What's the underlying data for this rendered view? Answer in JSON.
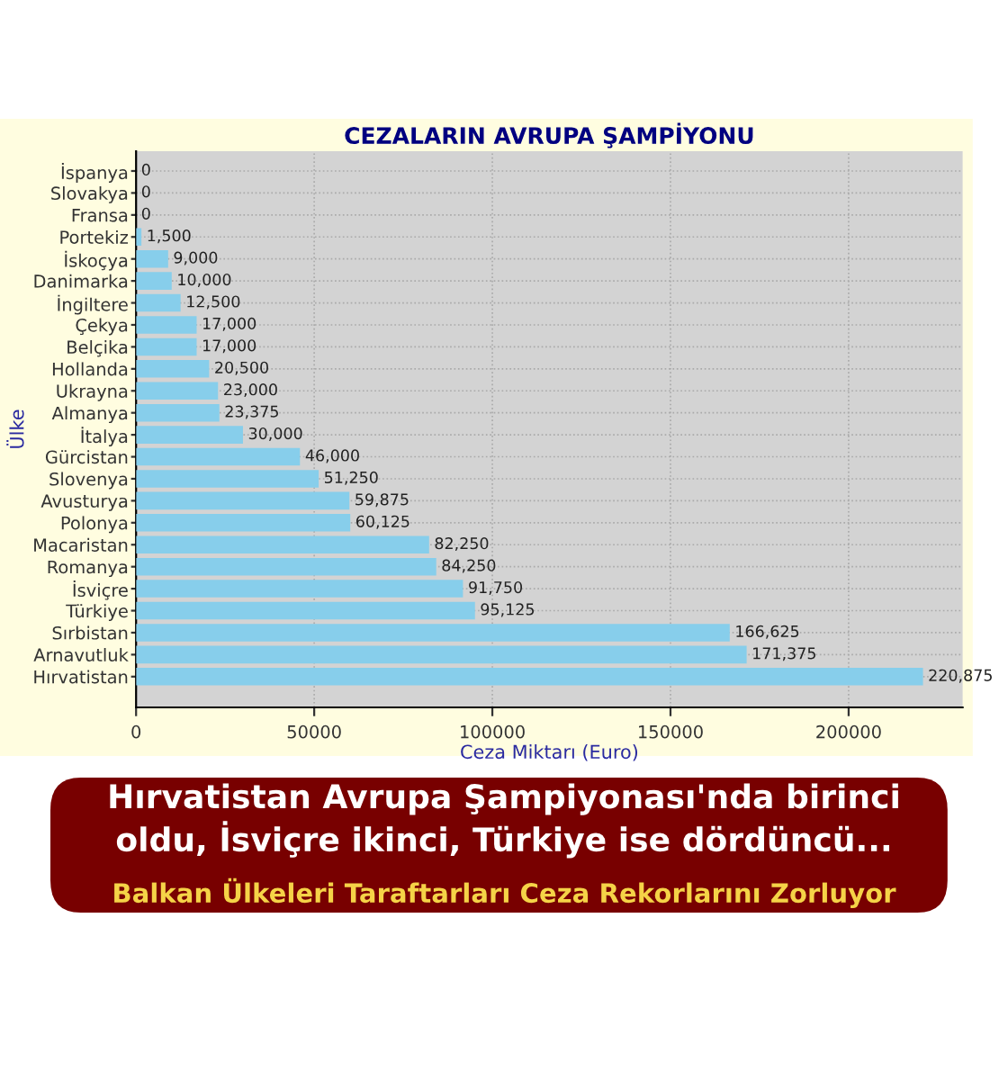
{
  "chart_data": {
    "type": "bar",
    "orientation": "horizontal",
    "title": "CEZALARIN AVRUPA ŞAMPİYONU",
    "xlabel": "Ceza Miktarı (Euro)",
    "ylabel": "Ülke",
    "categories": [
      "İspanya",
      "Slovakya",
      "Fransa",
      "Portekiz",
      "İskoçya",
      "Danimarka",
      "İngiltere",
      "Çekya",
      "Belçika",
      "Hollanda",
      "Ukrayna",
      "Almanya",
      "İtalya",
      "Gürcistan",
      "Slovenya",
      "Avusturya",
      "Polonya",
      "Macaristan",
      "Romanya",
      "İsviçre",
      "Türkiye",
      "Sırbistan",
      "Arnavutluk",
      "Hırvatistan"
    ],
    "values": [
      0,
      0,
      0,
      1500,
      9000,
      10000,
      12500,
      17000,
      17000,
      20500,
      23000,
      23375,
      30000,
      46000,
      51250,
      59875,
      60125,
      82250,
      84250,
      91750,
      95125,
      166625,
      171375,
      220875
    ],
    "value_labels": [
      "0",
      "0",
      "0",
      "1,500",
      "9,000",
      "10,000",
      "12,500",
      "17,000",
      "17,000",
      "20,500",
      "23,000",
      "23,375",
      "30,000",
      "46,000",
      "51,250",
      "59,875",
      "60,125",
      "82,250",
      "84,250",
      "91,750",
      "95,125",
      "166,625",
      "171,375",
      "220,875"
    ],
    "color": "#87ceeb",
    "xlim": [
      0,
      232000
    ],
    "xticks": [
      0,
      50000,
      100000,
      150000,
      200000
    ],
    "grid": true,
    "annotations": [
      "Hırvatistan Avrupa Şampiyonası'nda birinci oldu, İsviçre ikinci, Türkiye ise dördüncü...",
      "Balkan Ülkeleri Taraftarları Ceza Rekorlarını Zorluyor"
    ]
  }
}
